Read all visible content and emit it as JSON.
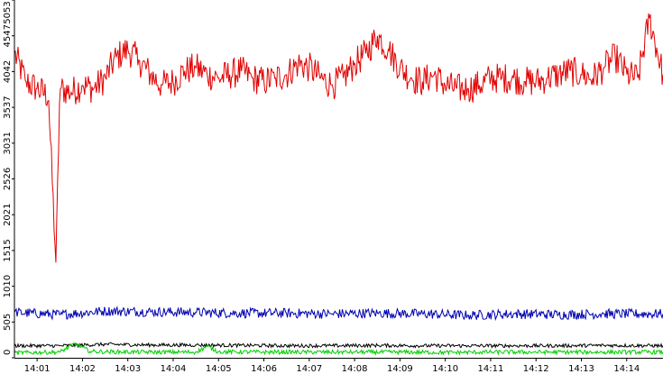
{
  "chart_data": {
    "type": "line",
    "title": "",
    "xlabel": "",
    "ylabel": "",
    "grid": false,
    "legend": "none",
    "ylim": [
      0,
      5053
    ],
    "xlim": [
      "14:00:30",
      "14:14:48"
    ],
    "y_ticks": [
      0,
      505,
      1010,
      1515,
      2021,
      2526,
      3031,
      3537,
      4042,
      4547,
      5053
    ],
    "x_ticks": [
      "14:01",
      "14:02",
      "14:03",
      "14:04",
      "14:05",
      "14:06",
      "14:07",
      "14:08",
      "14:09",
      "14:10",
      "14:11",
      "14:12",
      "14:13",
      "14:14"
    ],
    "series": [
      {
        "color": "#e00000",
        "x": [
          "14:00:30",
          "14:00:45",
          "14:01:00",
          "14:01:15",
          "14:01:25",
          "14:01:30",
          "14:01:45",
          "14:02:00",
          "14:02:15",
          "14:02:30",
          "14:02:45",
          "14:03:00",
          "14:03:15",
          "14:03:30",
          "14:03:45",
          "14:04:00",
          "14:04:15",
          "14:04:30",
          "14:04:45",
          "14:05:00",
          "14:05:15",
          "14:05:30",
          "14:05:45",
          "14:06:00",
          "14:06:15",
          "14:06:30",
          "14:06:45",
          "14:07:00",
          "14:07:15",
          "14:07:30",
          "14:07:45",
          "14:08:00",
          "14:08:15",
          "14:08:30",
          "14:08:45",
          "14:09:00",
          "14:09:15",
          "14:09:30",
          "14:09:45",
          "14:10:00",
          "14:10:15",
          "14:10:30",
          "14:10:45",
          "14:11:00",
          "14:11:15",
          "14:11:30",
          "14:11:45",
          "14:12:00",
          "14:12:15",
          "14:12:30",
          "14:12:45",
          "14:13:00",
          "14:13:15",
          "14:13:30",
          "14:13:45",
          "14:14:00",
          "14:14:15",
          "14:14:30",
          "14:14:48"
        ],
        "values": [
          4300,
          3900,
          3800,
          3700,
          1300,
          3800,
          3750,
          3850,
          3800,
          3950,
          4250,
          4350,
          4200,
          4000,
          3850,
          3900,
          4050,
          4100,
          4000,
          3950,
          4000,
          4050,
          3950,
          3900,
          3950,
          4000,
          4150,
          4100,
          3950,
          3850,
          3950,
          4150,
          4300,
          4550,
          4350,
          4100,
          3950,
          3900,
          4000,
          3850,
          3800,
          3800,
          3850,
          3950,
          3950,
          3950,
          3900,
          3900,
          3950,
          4000,
          4050,
          4000,
          3950,
          4100,
          4250,
          4000,
          3950,
          4800,
          4000
        ],
        "noise": 220
      },
      {
        "color": "#0000b0",
        "x": [
          "14:00:30",
          "14:01:30",
          "14:02:30",
          "14:03:30",
          "14:04:30",
          "14:05:30",
          "14:06:30",
          "14:07:30",
          "14:08:30",
          "14:09:30",
          "14:10:30",
          "14:11:30",
          "14:12:30",
          "14:13:30",
          "14:14:48"
        ],
        "values": [
          640,
          610,
          660,
          650,
          640,
          630,
          630,
          620,
          630,
          620,
          600,
          620,
          610,
          620,
          620
        ],
        "noise": 70
      },
      {
        "color": "#000000",
        "x": [
          "14:00:30",
          "14:01:30",
          "14:02:30",
          "14:03:30",
          "14:04:30",
          "14:05:30",
          "14:06:30",
          "14:07:30",
          "14:08:30",
          "14:09:30",
          "14:10:30",
          "14:11:30",
          "14:12:30",
          "14:13:30",
          "14:14:48"
        ],
        "values": [
          170,
          170,
          190,
          180,
          180,
          175,
          170,
          170,
          175,
          170,
          170,
          170,
          170,
          175,
          170
        ],
        "noise": 25
      },
      {
        "color": "#00d000",
        "x": [
          "14:00:30",
          "14:01:30",
          "14:01:50",
          "14:02:10",
          "14:02:30",
          "14:03:30",
          "14:04:30",
          "14:04:45",
          "14:05:00",
          "14:06:00",
          "14:07:00",
          "14:08:00",
          "14:09:00",
          "14:10:00",
          "14:11:00",
          "14:12:00",
          "14:13:00",
          "14:14:48"
        ],
        "values": [
          70,
          80,
          200,
          90,
          85,
          80,
          80,
          160,
          85,
          80,
          80,
          80,
          80,
          75,
          80,
          80,
          80,
          80
        ],
        "noise": 30
      }
    ]
  }
}
